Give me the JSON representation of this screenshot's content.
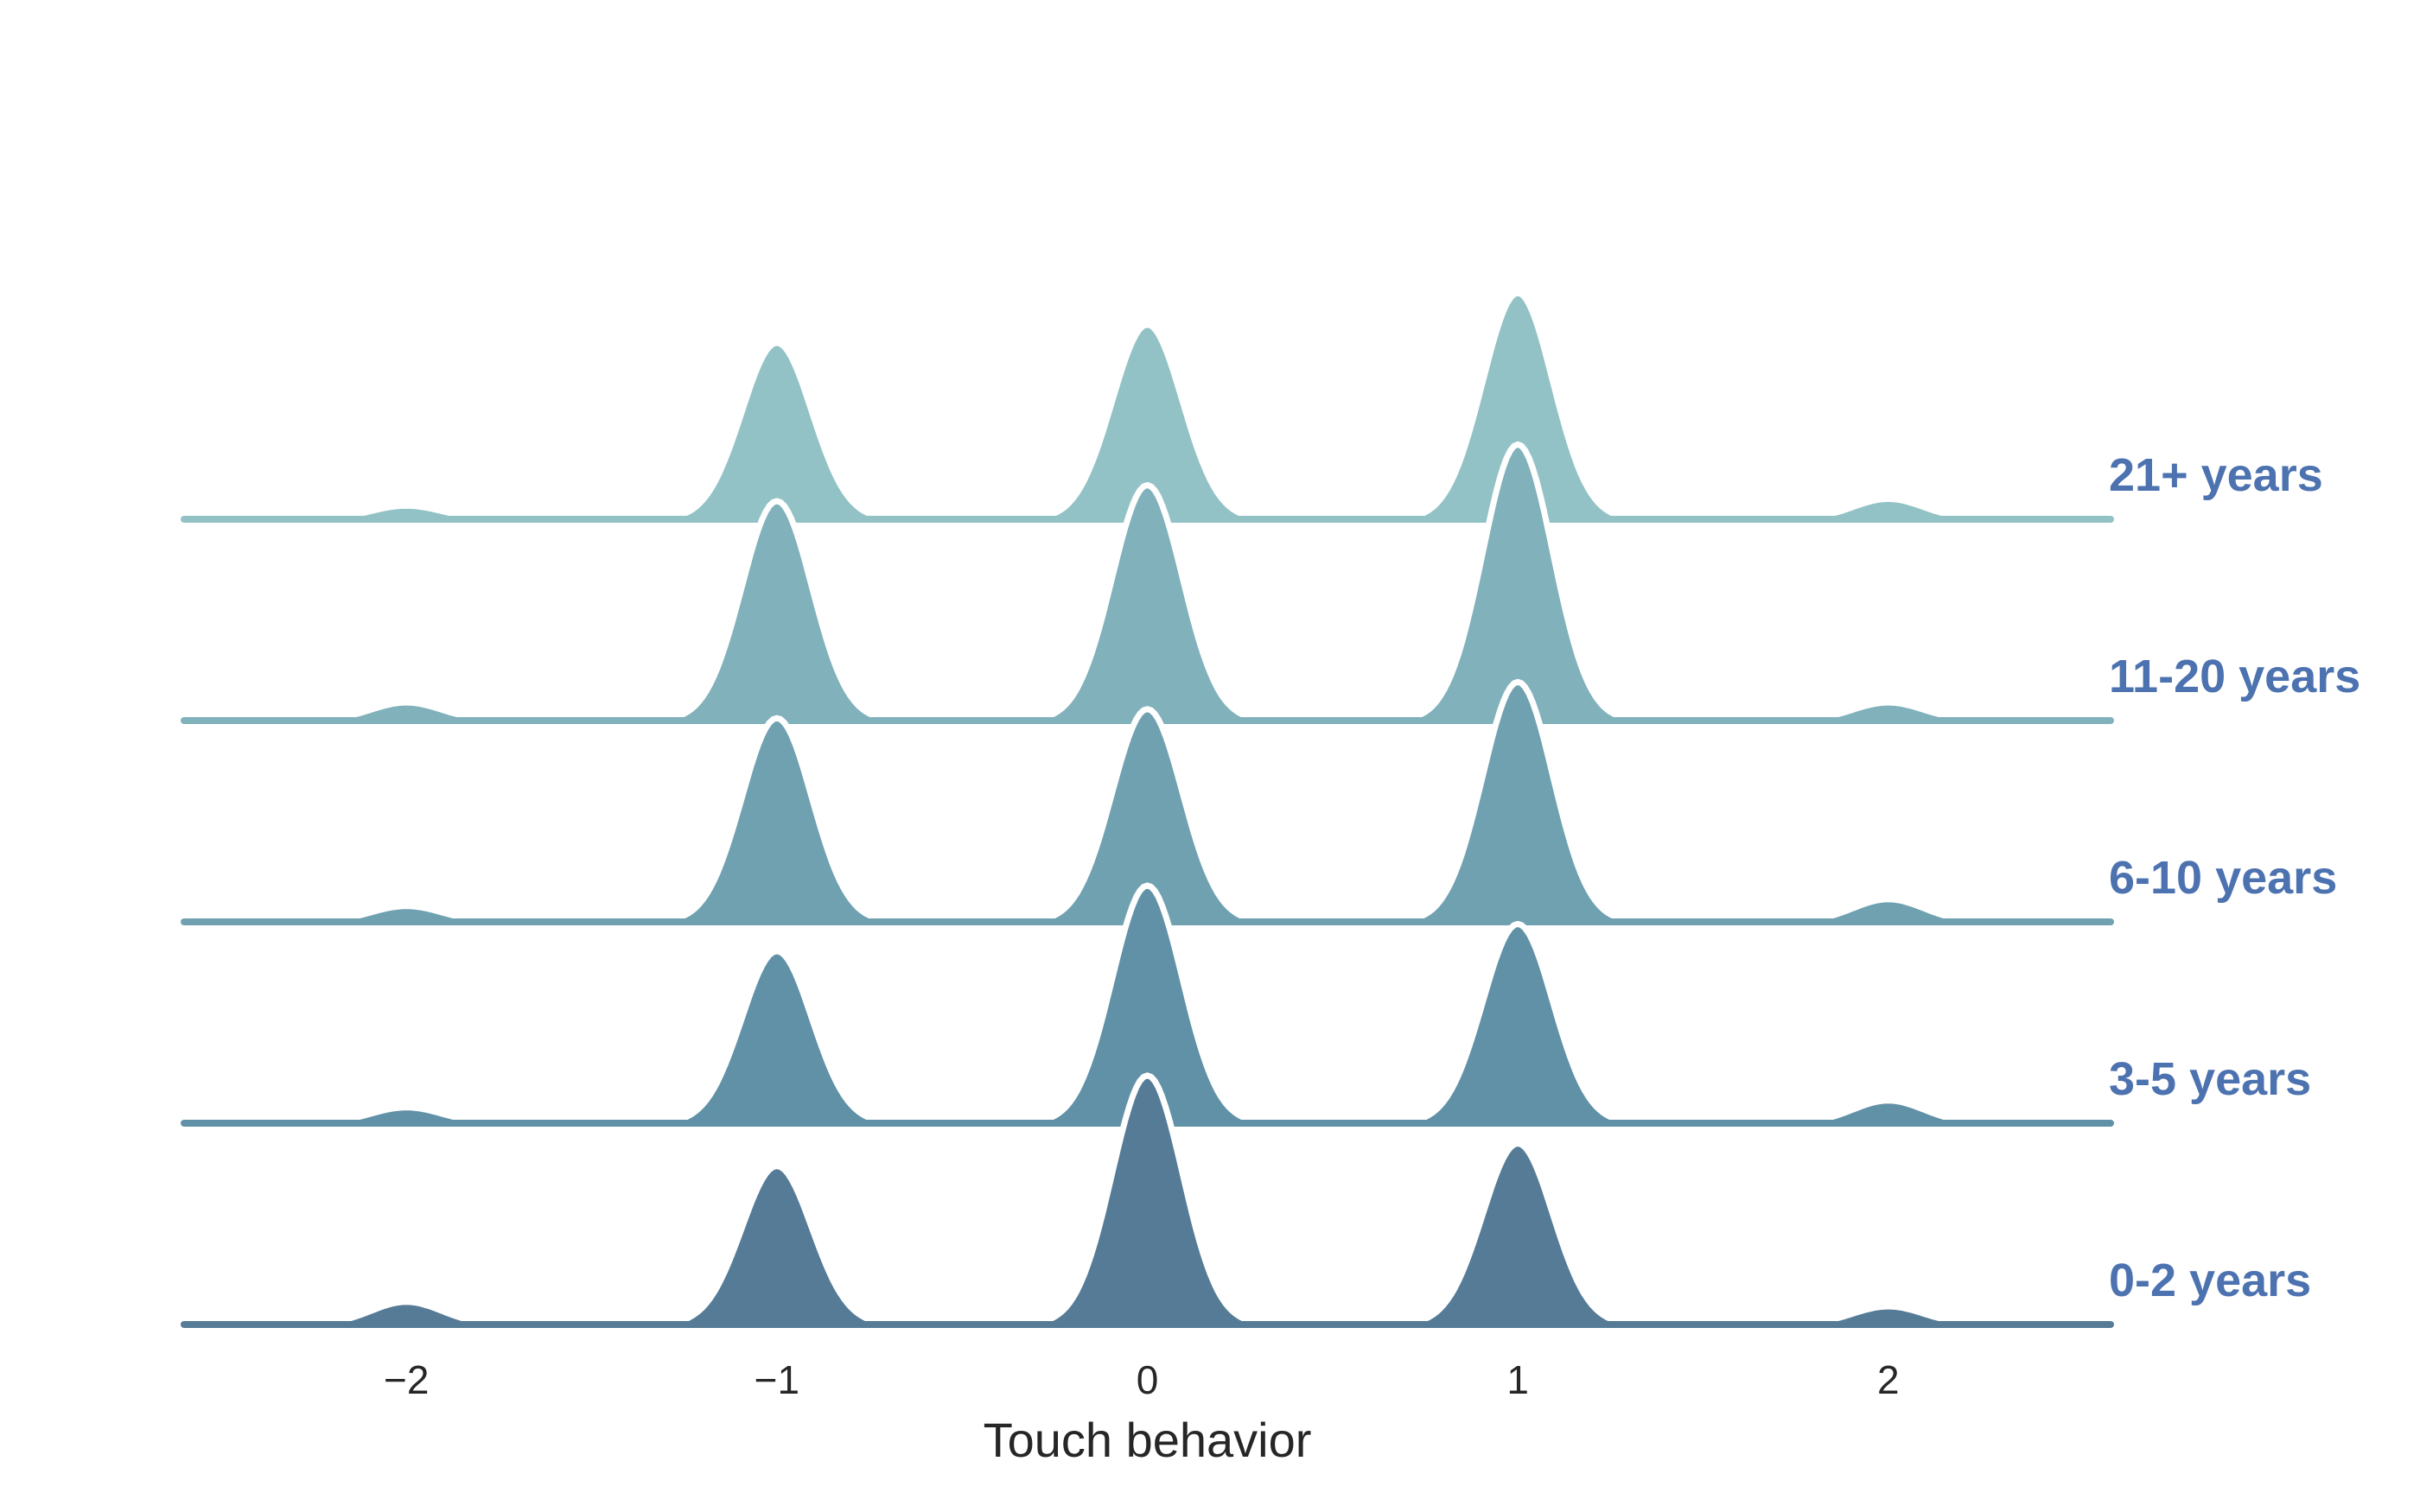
{
  "chart_data": {
    "type": "area",
    "subtype": "ridgeline",
    "title": "",
    "xlabel": "Touch behavior",
    "ylabel": "",
    "xlim": [
      -2.6,
      2.6
    ],
    "x_ticks": [
      -2,
      -1,
      0,
      1,
      2
    ],
    "x_tick_labels": [
      "−2",
      "−1",
      "0",
      "1",
      "2"
    ],
    "grid": false,
    "legend": "none",
    "label_color": "#4c72b0",
    "outline_color": "#ffffff",
    "series": [
      {
        "name": "0-2 years",
        "color": "#557b97",
        "peaks": [
          {
            "x": -2,
            "density": 0.1
          },
          {
            "x": -1,
            "density": 0.7
          },
          {
            "x": 0,
            "density": 1.1
          },
          {
            "x": 1,
            "density": 0.8
          },
          {
            "x": 2,
            "density": 0.08
          }
        ]
      },
      {
        "name": "3-5 years",
        "color": "#6191a7",
        "peaks": [
          {
            "x": -2,
            "density": 0.07
          },
          {
            "x": -1,
            "density": 0.76
          },
          {
            "x": 0,
            "density": 1.05
          },
          {
            "x": 1,
            "density": 0.88
          },
          {
            "x": 2,
            "density": 0.1
          }
        ]
      },
      {
        "name": "6-10 years",
        "color": "#70a1b1",
        "peaks": [
          {
            "x": -2,
            "density": 0.07
          },
          {
            "x": -1,
            "density": 0.9
          },
          {
            "x": 0,
            "density": 0.94
          },
          {
            "x": 1,
            "density": 1.06
          },
          {
            "x": 2,
            "density": 0.1
          }
        ]
      },
      {
        "name": "11-20 years",
        "color": "#81b1bb",
        "peaks": [
          {
            "x": -2,
            "density": 0.08
          },
          {
            "x": -1,
            "density": 0.97
          },
          {
            "x": 0,
            "density": 1.04
          },
          {
            "x": 1,
            "density": 1.22
          },
          {
            "x": 2,
            "density": 0.08
          }
        ]
      },
      {
        "name": "21+ years",
        "color": "#93c2c6",
        "peaks": [
          {
            "x": -2,
            "density": 0.06
          },
          {
            "x": -1,
            "density": 0.78
          },
          {
            "x": 0,
            "density": 0.86
          },
          {
            "x": 1,
            "density": 1.0
          },
          {
            "x": 2,
            "density": 0.09
          }
        ]
      }
    ]
  }
}
